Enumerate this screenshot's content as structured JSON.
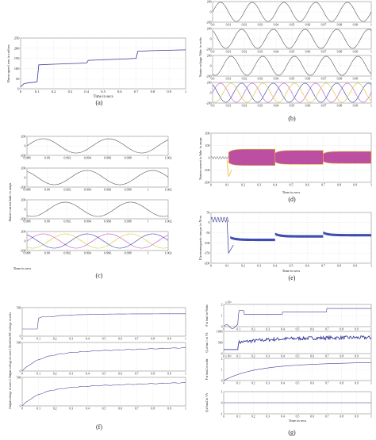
{
  "panels": [
    {
      "letter": "(a)"
    },
    {
      "letter": "(b)"
    },
    {
      "letter": "(c)"
    },
    {
      "letter": "(d)"
    },
    {
      "letter": "(e)"
    },
    {
      "letter": "(f)"
    },
    {
      "letter": "(g)"
    }
  ],
  "chart_data": [
    {
      "id": "a",
      "type": "line",
      "panel_label": "(a)",
      "xlabel": "Time in secs",
      "ylabel": "Rotor speed wm in rad/sec",
      "xlim": [
        0,
        1
      ],
      "ylim": [
        0,
        250
      ],
      "xticks": [
        "0",
        "0.1",
        "0.2",
        "0.3",
        "0.4",
        "0.5",
        "0.6",
        "0.7",
        "0.8",
        "0.9",
        "1"
      ],
      "yticks": [
        "0",
        "50",
        "100",
        "150",
        "200",
        "250"
      ],
      "series": [
        {
          "color": "#3a3a9a",
          "x": [
            0,
            0.02,
            0.05,
            0.08,
            0.1,
            0.11,
            0.2,
            0.3,
            0.4,
            0.41,
            0.5,
            0.6,
            0.7,
            0.71,
            0.8,
            0.9,
            1.0
          ],
          "y": [
            10,
            25,
            30,
            32,
            35,
            118,
            121,
            124,
            127,
            140,
            143,
            146,
            150,
            185,
            188,
            190,
            192
          ]
        }
      ]
    },
    {
      "id": "b",
      "type": "line",
      "panel_label": "(b)",
      "xlabel": "",
      "ylabel": "Stator voltage Vabc in volts",
      "subplots": [
        {
          "xlim": [
            0.9,
            1.0
          ],
          "ylim": [
            -200,
            200
          ],
          "yticks": [
            "200",
            "0",
            "-200"
          ],
          "xticks": [
            "0.9",
            "0.91",
            "0.92",
            "0.93",
            "0.94",
            "0.95",
            "0.96",
            "0.97",
            "0.98",
            "0.99",
            "1"
          ],
          "cycles": 5,
          "colors": [
            "#555555"
          ]
        },
        {
          "xlim": [
            0.9,
            1.0
          ],
          "ylim": [
            -200,
            200
          ],
          "yticks": [
            "200",
            "0",
            "-200"
          ],
          "xticks": [
            "0.9",
            "0.91",
            "0.92",
            "0.93",
            "0.94",
            "0.95",
            "0.96",
            "0.97",
            "0.98",
            "0.99",
            "1"
          ],
          "cycles": 5,
          "colors": [
            "#555555"
          ]
        },
        {
          "xlim": [
            0.9,
            1.0
          ],
          "ylim": [
            -200,
            200
          ],
          "yticks": [
            "200",
            "0",
            "-200"
          ],
          "xticks": [
            "0.9",
            "0.91",
            "0.92",
            "0.93",
            "0.94",
            "0.95",
            "0.96",
            "0.97",
            "0.98",
            "0.99",
            "1"
          ],
          "cycles": 5,
          "colors": [
            "#555555"
          ]
        },
        {
          "xlim": [
            0.9,
            1.0
          ],
          "ylim": [
            -200,
            200
          ],
          "yticks": [
            "200",
            "0",
            "-200"
          ],
          "xticks": [
            "0.9",
            "0.91",
            "0.92",
            "0.93",
            "0.94",
            "0.95",
            "0.96",
            "0.97",
            "0.98",
            "0.99",
            "1"
          ],
          "cycles": 5,
          "colors": [
            "#c050c0",
            "#3a3ab0",
            "#d8c830"
          ]
        }
      ]
    },
    {
      "id": "c",
      "type": "line",
      "panel_label": "(c)",
      "xlabel": "Time in secs",
      "ylabel": "Stator current Iabc in amps",
      "subplots": [
        {
          "xlim": [
            0.988,
            1.002
          ],
          "ylim": [
            -200,
            200
          ],
          "yticks": [
            "200",
            "0",
            "-200"
          ],
          "xticks": [
            "0.988",
            "0.99",
            "0.992",
            "0.994",
            "0.996",
            "0.998",
            "1",
            "1.002"
          ],
          "phase": 0,
          "colors": [
            "#555555"
          ]
        },
        {
          "xlim": [
            0.988,
            1.002
          ],
          "ylim": [
            -200,
            200
          ],
          "yticks": [
            "200",
            "0",
            "-200"
          ],
          "xticks": [
            "0.988",
            "0.99",
            "0.992",
            "0.994",
            "0.996",
            "0.998",
            "1",
            "1.002"
          ],
          "phase": 2.1,
          "colors": [
            "#555555"
          ]
        },
        {
          "xlim": [
            0.988,
            1.002
          ],
          "ylim": [
            -200,
            200
          ],
          "yticks": [
            "200",
            "0",
            "-200"
          ],
          "xticks": [
            "0.988",
            "0.99",
            "0.992",
            "0.994",
            "0.996",
            "0.998",
            "1",
            "1.002"
          ],
          "phase": 4.2,
          "colors": [
            "#555555"
          ]
        },
        {
          "xlim": [
            0.988,
            1.002
          ],
          "ylim": [
            -200,
            200
          ],
          "yticks": [
            "200",
            "0",
            "-200"
          ],
          "xticks": [
            "0.988",
            "0.99",
            "0.992",
            "0.994",
            "0.996",
            "0.998",
            "1",
            "1.002"
          ],
          "phase": 0,
          "colors": [
            "#c050c0",
            "#3a3ab0",
            "#d8c830"
          ]
        }
      ]
    },
    {
      "id": "d",
      "type": "line",
      "panel_label": "(d)",
      "xlabel": "Time in secs",
      "ylabel": "Stator current in Iabc in amps",
      "xlim": [
        0,
        1
      ],
      "ylim": [
        -200,
        200
      ],
      "xticks": [
        "0",
        "0.1",
        "0.2",
        "0.3",
        "0.4",
        "0.5",
        "0.6",
        "0.7",
        "0.8",
        "0.9",
        "1"
      ],
      "yticks": [
        "200",
        "100",
        "0",
        "-100",
        "-200"
      ],
      "band_color": "#b03090",
      "yellow_color": "#e8c020"
    },
    {
      "id": "e",
      "type": "line",
      "panel_label": "(e)",
      "xlabel": "Time in secs",
      "ylabel": "Electromagnetic torque in N-m",
      "xlim": [
        0,
        1
      ],
      "ylim": [
        -200,
        50
      ],
      "xticks": [
        "0",
        "0.1",
        "0.2",
        "0.3",
        "0.4",
        "0.5",
        "0.6",
        "0.7",
        "0.8",
        "0.9",
        "1"
      ],
      "yticks": [
        "50",
        "0",
        "-50",
        "-100",
        "-150",
        "-200"
      ],
      "band_color": "#2a3aa8"
    },
    {
      "id": "f",
      "type": "line",
      "panel_label": "(f)",
      "xlabel": "",
      "ylabel": "Output voltage of conv.2  Output voltage of conv.1  Rectified DC voltage in volts",
      "subplots": [
        {
          "xlim": [
            0,
            1
          ],
          "xticks": [
            "0",
            "0.1",
            "0.2",
            "0.3",
            "0.4",
            "0.5",
            "0.6",
            "0.7",
            "0.8",
            "0.9",
            "1"
          ],
          "yticks": [
            "500",
            "0"
          ],
          "kind": "dc"
        },
        {
          "xlim": [
            0,
            1
          ],
          "xticks": [
            "0",
            "0.1",
            "0.2",
            "0.3",
            "0.4",
            "0.5",
            "0.6",
            "0.7",
            "0.8",
            "0.9",
            "1"
          ],
          "yticks": [
            "500",
            "0"
          ],
          "kind": "rise"
        },
        {
          "xlim": [
            0,
            1
          ],
          "xticks": [
            "0",
            "0.1",
            "0.2",
            "0.3",
            "0.4",
            "0.5",
            "0.6",
            "0.7",
            "0.8",
            "0.9",
            "1"
          ],
          "yticks": [
            "500",
            "0"
          ],
          "kind": "rise"
        }
      ]
    },
    {
      "id": "g",
      "type": "line",
      "panel_label": "(g)",
      "xlabel": "Time in secs",
      "ylabel": "",
      "subplots": [
        {
          "ylabel": "P at bus1 in Watts",
          "exp": "x 10⁴",
          "yticks": [
            "2",
            "1",
            "0"
          ],
          "xticks": [
            "0",
            "0.1",
            "0.2",
            "0.3",
            "0.4",
            "0.5",
            "0.6",
            "0.7",
            "0.8",
            "0.9",
            "1"
          ],
          "kind": "step"
        },
        {
          "ylabel": "Q at bus 1 in VA",
          "exp": "",
          "yticks": [
            "1000",
            "500",
            "0"
          ],
          "xticks": [
            "0",
            "0.1",
            "0.2",
            "0.3",
            "0.4",
            "0.5",
            "0.6",
            "0.7",
            "0.8",
            "0.9",
            "1"
          ],
          "kind": "noisy"
        },
        {
          "ylabel": "P at bus2 in watts",
          "exp": "x 10⁴",
          "yticks": [
            "2",
            "1",
            "0"
          ],
          "xticks": [
            "0",
            "0.1",
            "0.2",
            "0.3",
            "0.4",
            "0.5",
            "0.6",
            "0.7",
            "0.8",
            "0.9",
            "1"
          ],
          "kind": "rise"
        },
        {
          "ylabel": "Q at bus2 in VA",
          "exp": "",
          "yticks": [
            "1",
            "0",
            "-1"
          ],
          "xticks": [
            "0",
            "0.1",
            "0.2",
            "0.3",
            "0.4",
            "0.5",
            "0.6",
            "0.7",
            "0.8",
            "0.9",
            "1"
          ],
          "kind": "flat"
        }
      ]
    }
  ]
}
